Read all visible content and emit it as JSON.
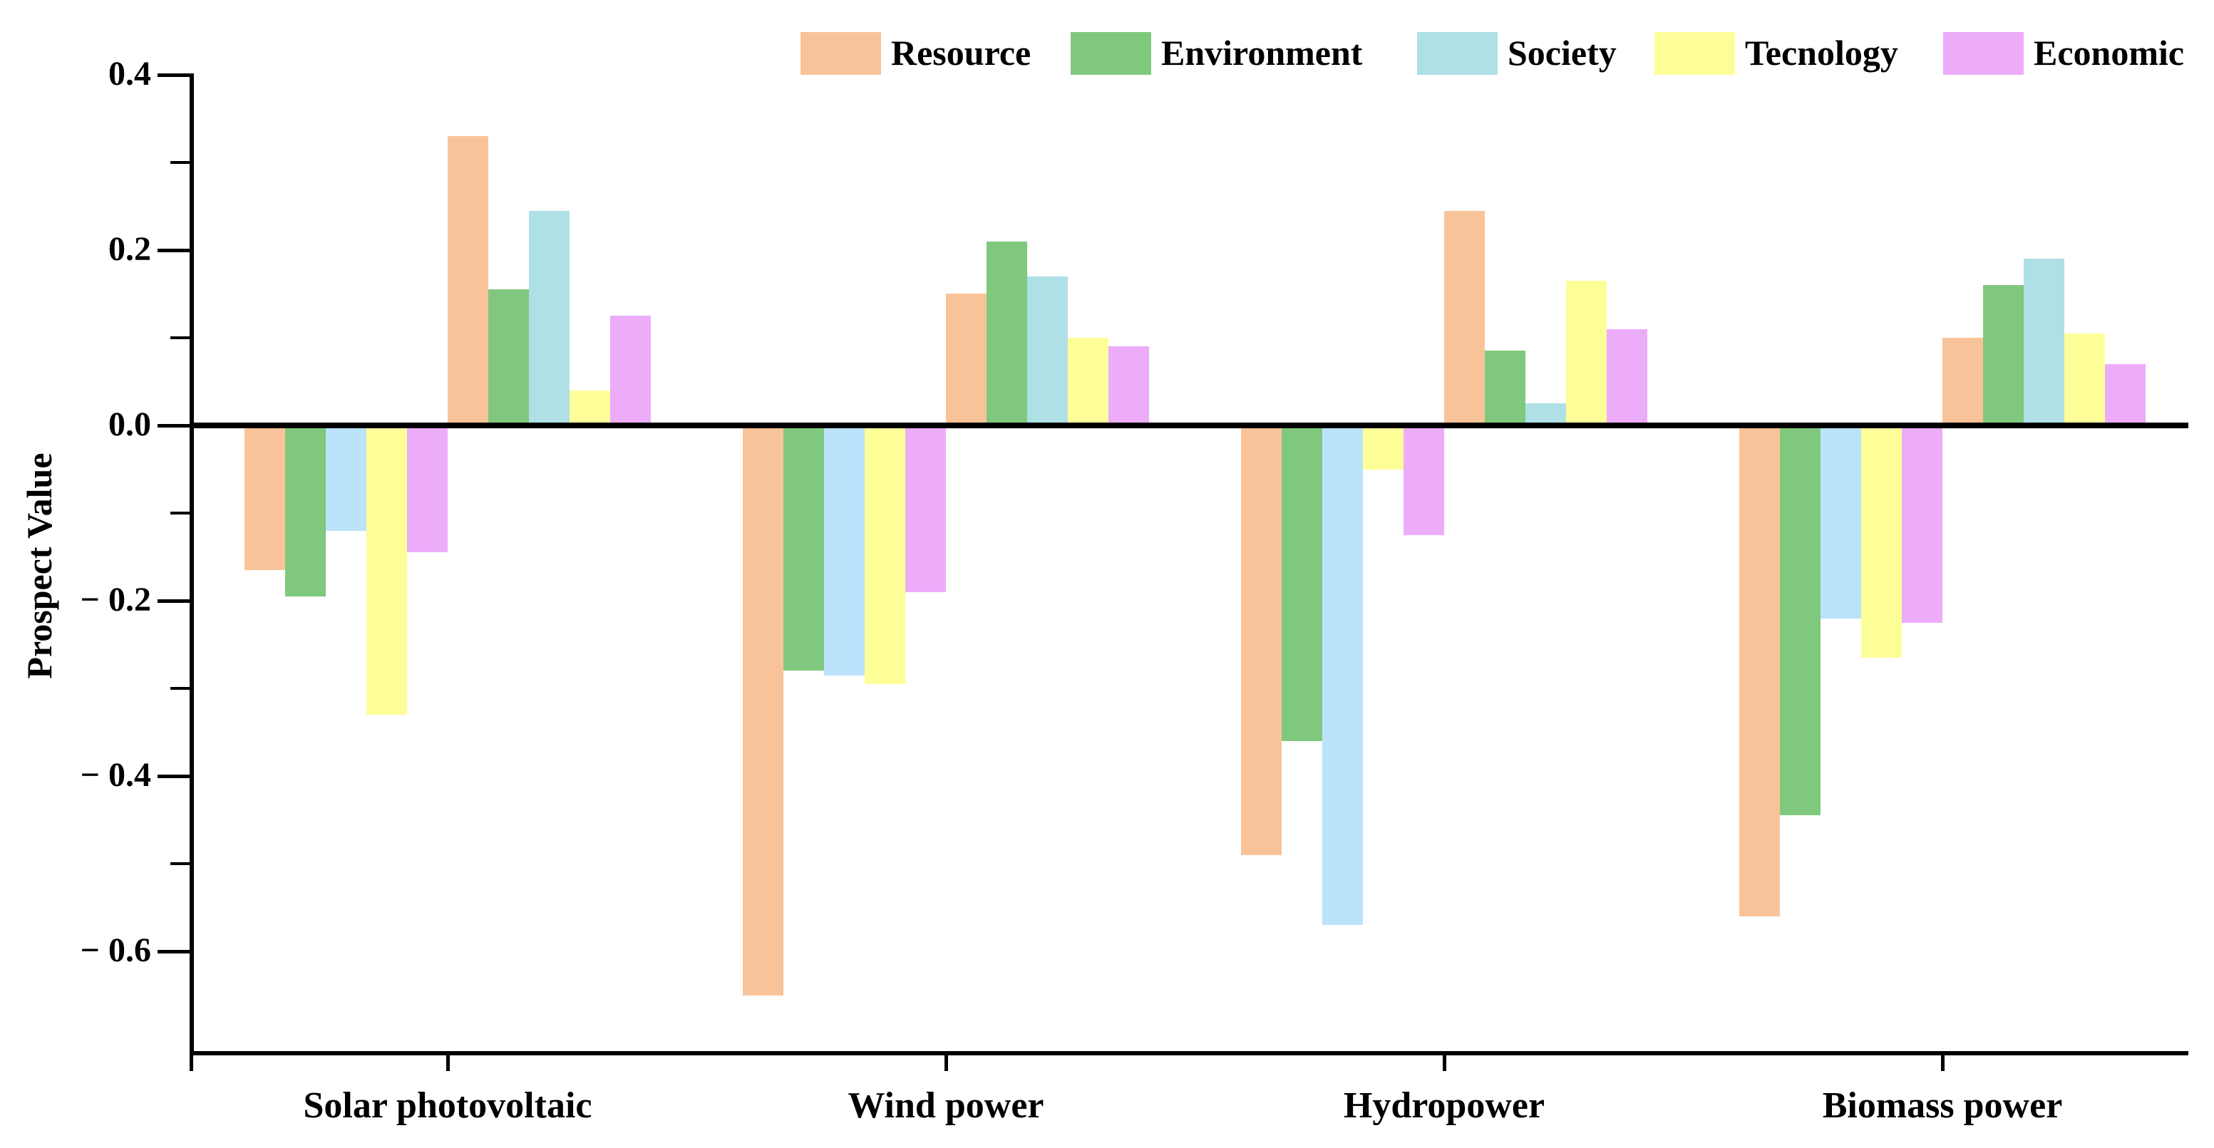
{
  "chart_data": {
    "type": "bar",
    "title": "",
    "ylabel": "Prospect Value",
    "xlabel": "",
    "categories": [
      "Solar photovoltaic",
      "Wind power",
      "Hydropower",
      "Biomass power"
    ],
    "legend_position": "top",
    "grid": false,
    "bar_layout": "each category shows 5 negative bars then 5 positive bars, series order Resource, Environment, Society, Tecnology, Economic",
    "y_axis": {
      "range": [
        -0.715,
        0.402
      ],
      "tick_values": [
        0.4,
        0.2,
        0.0,
        -0.2,
        -0.4,
        -0.6
      ],
      "tick_labels": [
        "0.4",
        "0.2",
        "0.0",
        "− 0.2",
        "− 0.4",
        "− 0.6"
      ],
      "minor_tick_values": [
        0.3,
        0.1,
        -0.1,
        -0.3,
        -0.5
      ]
    },
    "series": [
      {
        "name": "Resource",
        "color": "#F9C399",
        "negative": [
          -0.165,
          -0.65,
          -0.49,
          -0.56
        ],
        "positive": [
          0.33,
          0.15,
          0.245,
          0.1
        ]
      },
      {
        "name": "Environment",
        "color": "#80C87D",
        "negative": [
          -0.195,
          -0.28,
          -0.36,
          -0.445
        ],
        "positive": [
          0.155,
          0.21,
          0.085,
          0.16
        ]
      },
      {
        "name": "Society",
        "color": "#AFE0E6",
        "negative_color": "#BBE3FB",
        "negative": [
          -0.12,
          -0.285,
          -0.57,
          -0.22
        ],
        "positive": [
          0.245,
          0.17,
          0.025,
          0.19
        ]
      },
      {
        "name": "Tecnology",
        "color": "#FEFE99",
        "negative": [
          -0.33,
          -0.295,
          -0.05,
          -0.265
        ],
        "positive": [
          0.04,
          0.1,
          0.165,
          0.105
        ]
      },
      {
        "name": "Economic",
        "color": "#ECACF9",
        "negative": [
          -0.145,
          -0.19,
          -0.125,
          -0.225
        ],
        "positive": [
          0.125,
          0.09,
          0.11,
          0.07
        ]
      }
    ],
    "axis_color": "#000000",
    "background_color": "#FFFFFF"
  }
}
